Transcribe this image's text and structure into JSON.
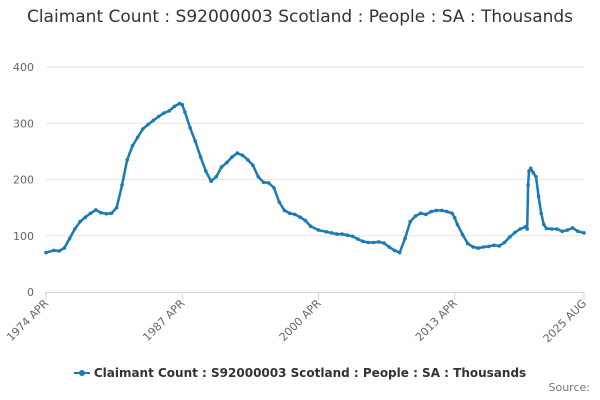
{
  "chart_data": {
    "type": "line",
    "title": "Claimant Count : S92000003 Scotland : People : SA : Thousands",
    "xlabel": "",
    "ylabel": "",
    "ylim": [
      0,
      400
    ],
    "yticks": [
      0,
      100,
      200,
      300,
      400
    ],
    "x_range": [
      "1974 APR",
      "2025 AUG"
    ],
    "xtick_labels": [
      "1974 APR",
      "1987 APR",
      "2000 APR",
      "2013 APR",
      "2025 AUG"
    ],
    "grid": "horizontal",
    "legend_position": "bottom",
    "color": "#1a7ab5",
    "series": [
      {
        "name": "Claimant Count : S92000003 Scotland : People : SA : Thousands",
        "x": [
          "1974 APR",
          "1975 JAN",
          "1975 JUL",
          "1976 JAN",
          "1976 JUL",
          "1977 JAN",
          "1977 JUL",
          "1978 JAN",
          "1978 JUL",
          "1979 JAN",
          "1979 JUL",
          "1980 JAN",
          "1980 JUL",
          "1981 JAN",
          "1981 JUL",
          "1982 JAN",
          "1982 JUL",
          "1983 JAN",
          "1983 JUL",
          "1984 JAN",
          "1984 JUL",
          "1985 JAN",
          "1985 JUL",
          "1986 JAN",
          "1986 JUL",
          "1987 JAN",
          "1987 APR",
          "1987 JUL",
          "1988 JAN",
          "1988 JUL",
          "1989 JAN",
          "1989 JUL",
          "1990 JAN",
          "1990 JUL",
          "1991 JAN",
          "1991 JUL",
          "1992 JAN",
          "1992 JUL",
          "1993 JAN",
          "1993 JUL",
          "1994 JAN",
          "1994 JUL",
          "1995 JAN",
          "1995 JUL",
          "1996 JAN",
          "1996 JUL",
          "1997 JAN",
          "1997 JUL",
          "1998 JAN",
          "1998 JUL",
          "1999 JAN",
          "1999 JUL",
          "2000 APR",
          "2001 JAN",
          "2001 JUL",
          "2002 JAN",
          "2002 JUL",
          "2003 JAN",
          "2003 JUL",
          "2004 JAN",
          "2004 JUL",
          "2005 JAN",
          "2005 JUL",
          "2006 JAN",
          "2006 JUL",
          "2007 JAN",
          "2007 JUL",
          "2008 JAN",
          "2008 JUL",
          "2009 JAN",
          "2009 JUL",
          "2010 JAN",
          "2010 JUL",
          "2011 JAN",
          "2011 JUL",
          "2012 JAN",
          "2012 JUL",
          "2013 JAN",
          "2013 APR",
          "2013 JUL",
          "2014 JAN",
          "2014 JUL",
          "2015 JAN",
          "2015 JUL",
          "2016 JAN",
          "2016 JUL",
          "2017 JAN",
          "2017 JUL",
          "2018 JAN",
          "2018 JUL",
          "2019 JAN",
          "2019 JUL",
          "2020 JAN",
          "2020 MAR",
          "2020 APR",
          "2020 MAY",
          "2020 JUL",
          "2020 OCT",
          "2021 JAN",
          "2021 APR",
          "2021 JUL",
          "2021 OCT",
          "2022 JAN",
          "2022 JUL",
          "2023 JAN",
          "2023 JUL",
          "2024 JAN",
          "2024 JUL",
          "2025 JAN",
          "2025 AUG"
        ],
        "values": [
          70,
          74,
          73,
          78,
          95,
          112,
          125,
          133,
          140,
          146,
          141,
          139,
          140,
          150,
          190,
          235,
          260,
          275,
          290,
          298,
          305,
          312,
          318,
          322,
          330,
          335,
          333,
          320,
          292,
          268,
          240,
          215,
          197,
          205,
          222,
          230,
          240,
          247,
          243,
          235,
          225,
          205,
          195,
          194,
          185,
          160,
          145,
          140,
          138,
          133,
          127,
          117,
          110,
          107,
          105,
          103,
          103,
          101,
          99,
          94,
          90,
          88,
          88,
          89,
          87,
          80,
          74,
          70,
          95,
          125,
          135,
          140,
          138,
          143,
          145,
          145,
          143,
          140,
          132,
          120,
          102,
          86,
          80,
          78,
          80,
          81,
          83,
          82,
          88,
          98,
          106,
          112,
          116,
          112,
          190,
          215,
          220,
          212,
          205,
          170,
          140,
          120,
          113,
          112,
          112,
          108,
          110,
          114,
          108,
          105
        ]
      }
    ]
  },
  "legend": {
    "label": "Claimant Count : S92000003 Scotland : People : SA : Thousands"
  },
  "credits": "Source:"
}
